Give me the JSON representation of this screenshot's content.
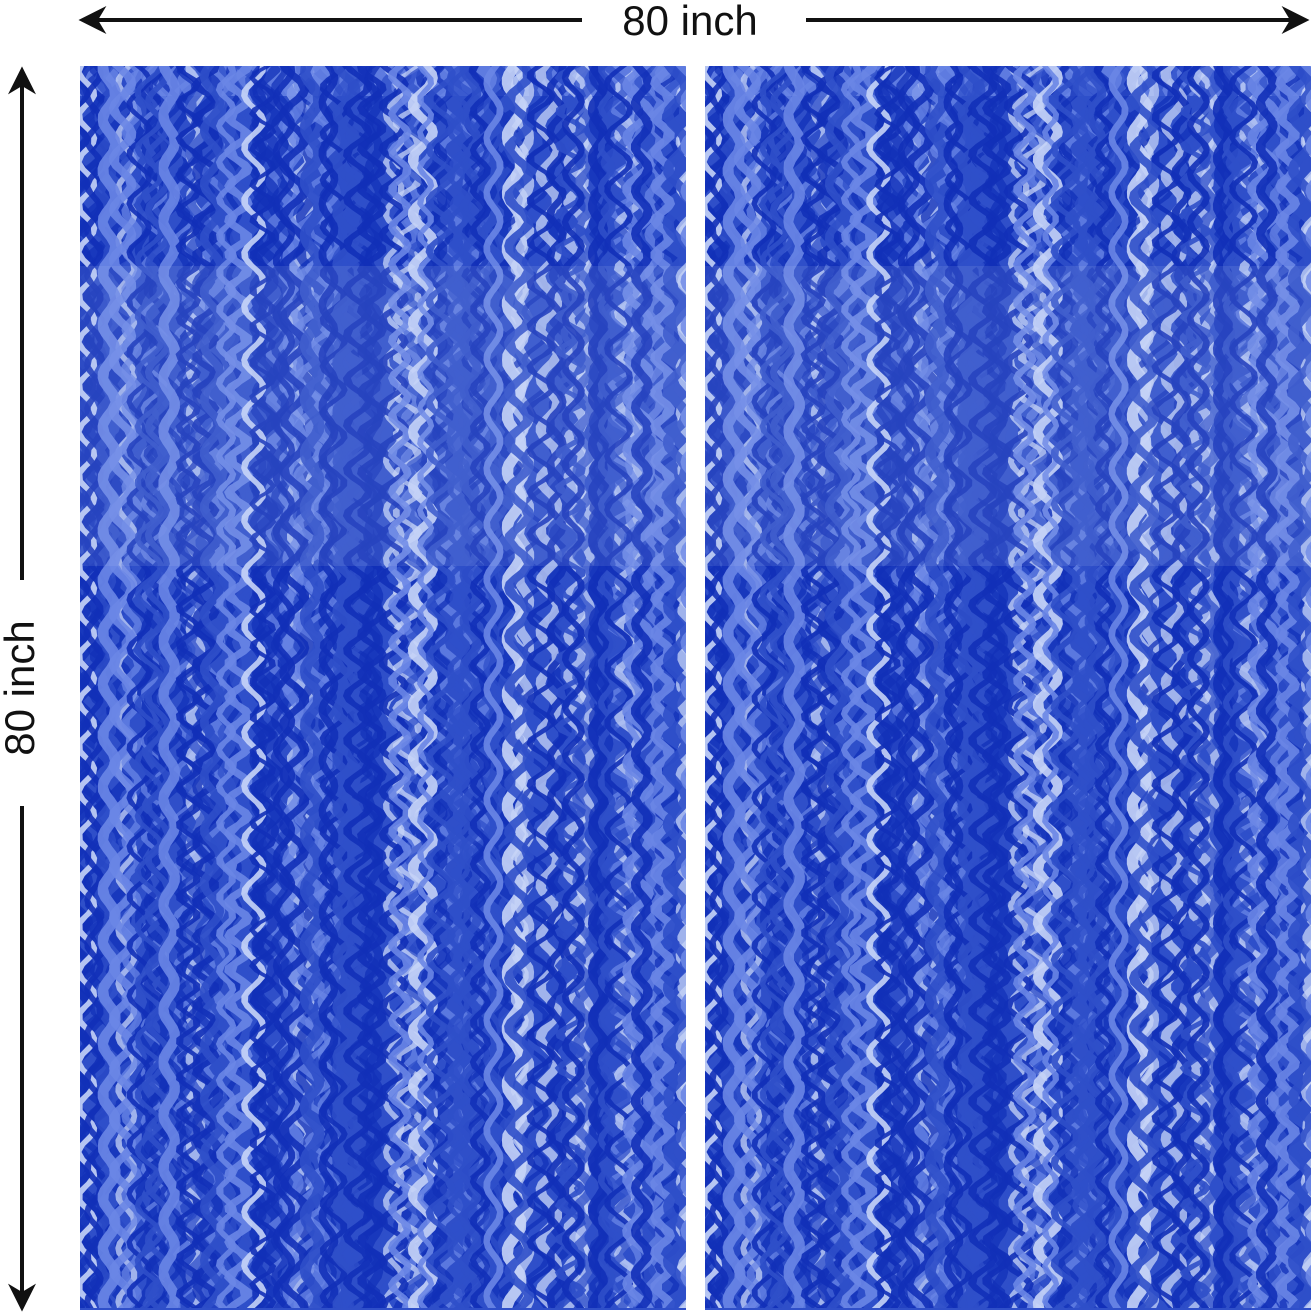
{
  "dimensions": {
    "width_label": "80 inch",
    "height_label": "80 inch"
  },
  "product": {
    "panel_count": 2,
    "colors": {
      "base": "#2f4fc9",
      "deep": "#1230b8",
      "light": "#6a86e6",
      "highlight": "#c7d4f7"
    }
  },
  "icons": [
    "double-arrow-horizontal-icon",
    "double-arrow-vertical-icon"
  ]
}
